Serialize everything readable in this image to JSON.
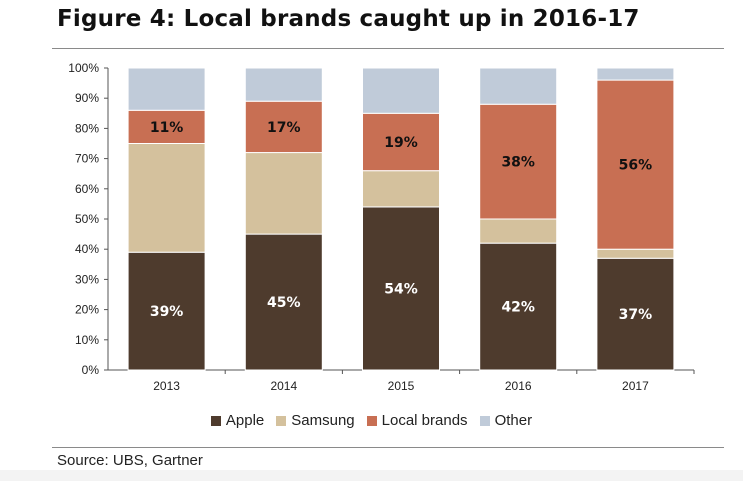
{
  "title": "Figure 4: Local brands caught up in 2016-17",
  "source": "Source:  UBS, Gartner",
  "colors": {
    "apple": "#4e3b2d",
    "samsung": "#d4c19d",
    "local": "#c86f53",
    "other": "#c0cbd9"
  },
  "chart_data": {
    "type": "bar",
    "stacked": true,
    "categories": [
      "2013",
      "2014",
      "2015",
      "2016",
      "2017"
    ],
    "ylim": [
      0,
      100
    ],
    "yticks": [
      "0%",
      "10%",
      "20%",
      "30%",
      "40%",
      "50%",
      "60%",
      "70%",
      "80%",
      "90%",
      "100%"
    ],
    "series": [
      {
        "name": "Apple",
        "key": "apple",
        "values": [
          39,
          45,
          54,
          42,
          37
        ],
        "labels": [
          "39%",
          "45%",
          "54%",
          "42%",
          "37%"
        ]
      },
      {
        "name": "Samsung",
        "key": "samsung",
        "values": [
          36,
          27,
          12,
          8,
          3
        ],
        "labels": [
          "",
          "",
          "",
          "",
          ""
        ]
      },
      {
        "name": "Local brands",
        "key": "local",
        "values": [
          11,
          17,
          19,
          38,
          56
        ],
        "labels": [
          "11%",
          "17%",
          "19%",
          "38%",
          "56%"
        ]
      },
      {
        "name": "Other",
        "key": "other",
        "values": [
          14,
          11,
          15,
          12,
          4
        ],
        "labels": [
          "",
          "",
          "",
          "",
          ""
        ]
      }
    ],
    "legend_position": "bottom",
    "grid": false
  }
}
